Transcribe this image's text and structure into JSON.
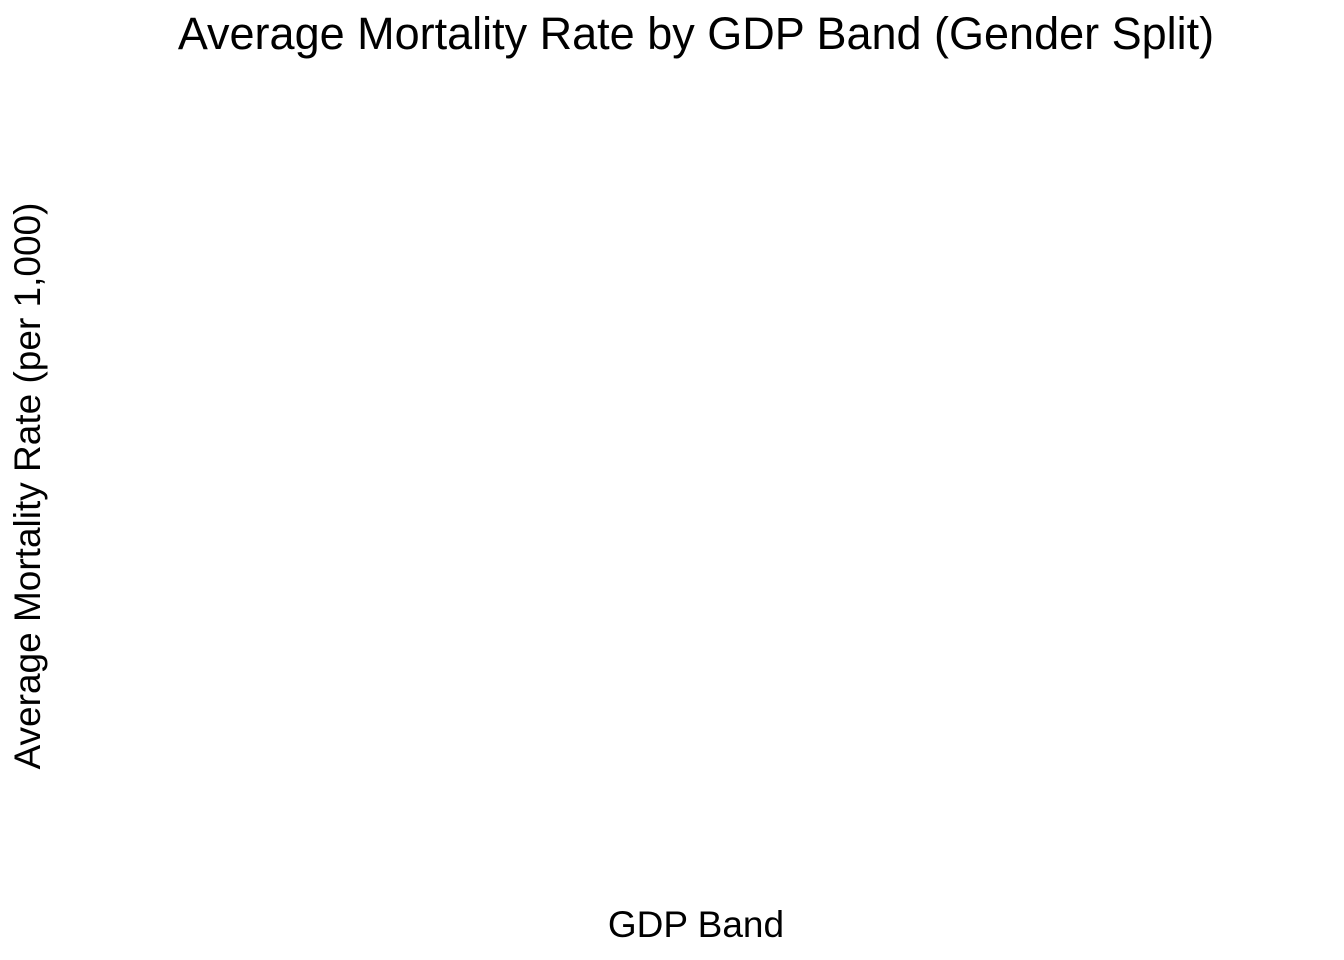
{
  "chart_data": {
    "type": "bar",
    "title": "Average Mortality Rate by GDP Band (Gender Split)",
    "xlabel": "GDP Band",
    "ylabel": "Average Mortality Rate (per 1,000)",
    "categories": [],
    "series": [],
    "grid": false,
    "legend": "none"
  }
}
